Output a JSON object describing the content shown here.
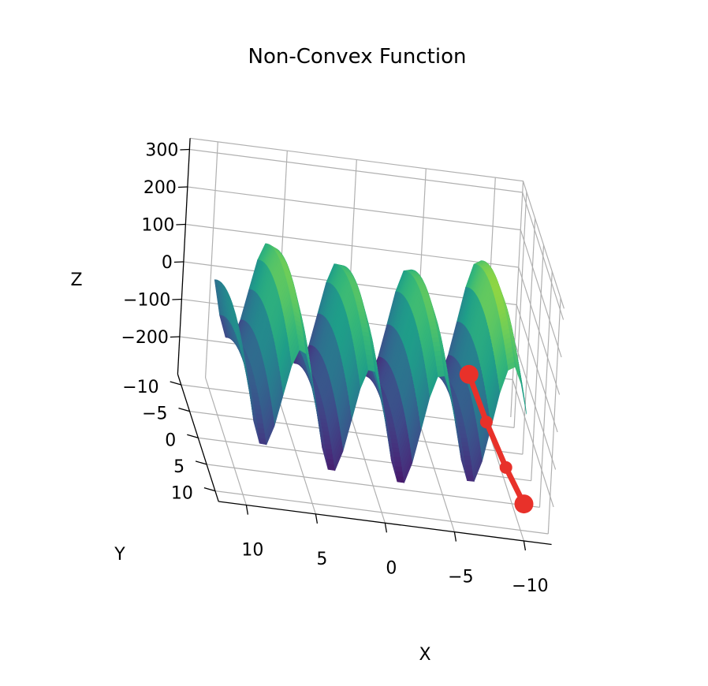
{
  "chart_data": {
    "type": "surface3d",
    "title": "Non-Convex Function",
    "xlabel": "X",
    "ylabel": "Y",
    "zlabel": "Z",
    "xlim": [
      -12,
      12
    ],
    "ylim": [
      -12,
      12
    ],
    "zlim": [
      -300,
      330
    ],
    "x_ticks": [
      "10",
      "5",
      "0",
      "−5",
      "−10"
    ],
    "y_ticks": [
      "−10",
      "−5",
      "0",
      "5",
      "10"
    ],
    "z_ticks": [
      "300",
      "200",
      "100",
      "0",
      "−100",
      "−200"
    ],
    "x_tick_values": [
      10,
      5,
      0,
      -5,
      -10
    ],
    "y_tick_values": [
      -10,
      -5,
      0,
      5,
      10
    ],
    "z_tick_values": [
      300,
      200,
      100,
      0,
      -100,
      -200
    ],
    "surface_colormap": "viridis",
    "grid": true,
    "path": {
      "color": "#e8312a",
      "points": [
        {
          "x": -8,
          "y": -6,
          "z": -120
        },
        {
          "x": -9,
          "y": -3,
          "z": -200
        },
        {
          "x": -10,
          "y": 1,
          "z": -260
        },
        {
          "x": -11,
          "y": 4,
          "z": -310
        }
      ]
    }
  }
}
